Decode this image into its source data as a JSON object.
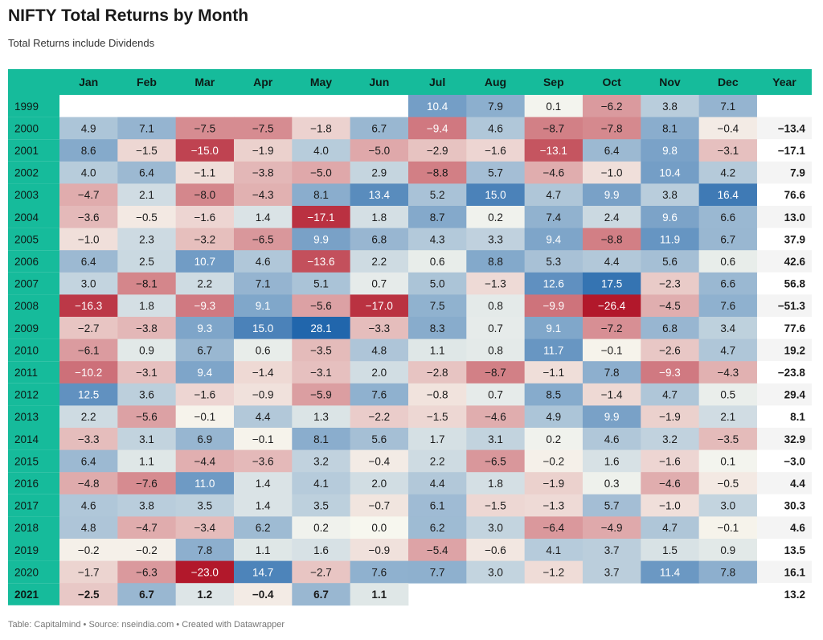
{
  "title": "NIFTY Total Returns by Month",
  "subtitle": "Total Returns include Dividends",
  "footer": "Table: Capitalmind • Source: nseindia.com • Created with Datawrapper",
  "colors": {
    "header": "#16bb9b",
    "neg_strong": "#b2182b",
    "neutral": "#f7f7ef",
    "pos_strong": "#2166ac",
    "stripe": "#f4f4f4"
  },
  "chart_data": {
    "type": "heatmap",
    "title": "NIFTY Total Returns by Month",
    "subtitle": "Total Returns include Dividends",
    "columns": [
      "Jan",
      "Feb",
      "Mar",
      "Apr",
      "May",
      "Jun",
      "Jul",
      "Aug",
      "Sep",
      "Oct",
      "Nov",
      "Dec"
    ],
    "year_column": "Year",
    "color_range": [
      -20,
      20
    ],
    "rows": [
      {
        "label": "1999",
        "values": [
          null,
          null,
          null,
          null,
          null,
          null,
          "10.4",
          "7.9",
          "0.1",
          "−6.2",
          "3.8",
          "7.1"
        ],
        "year": ""
      },
      {
        "label": "2000",
        "values": [
          "4.9",
          "7.1",
          "−7.5",
          "−7.5",
          "−1.8",
          "6.7",
          "−9.4",
          "4.6",
          "−8.7",
          "−7.8",
          "8.1",
          "−0.4"
        ],
        "year": "−13.4"
      },
      {
        "label": "2001",
        "values": [
          "8.6",
          "−1.5",
          "−15.0",
          "−1.9",
          "4.0",
          "−5.0",
          "−2.9",
          "−1.6",
          "−13.1",
          "6.4",
          "9.8",
          "−3.1"
        ],
        "year": "−17.1"
      },
      {
        "label": "2002",
        "values": [
          "4.0",
          "6.4",
          "−1.1",
          "−3.8",
          "−5.0",
          "2.9",
          "−8.8",
          "5.7",
          "−4.6",
          "−1.0",
          "10.4",
          "4.2"
        ],
        "year": "7.9"
      },
      {
        "label": "2003",
        "values": [
          "−4.7",
          "2.1",
          "−8.0",
          "−4.3",
          "8.1",
          "13.4",
          "5.2",
          "15.0",
          "4.7",
          "9.9",
          "3.8",
          "16.4"
        ],
        "year": "76.6"
      },
      {
        "label": "2004",
        "values": [
          "−3.6",
          "−0.5",
          "−1.6",
          "1.4",
          "−17.1",
          "1.8",
          "8.7",
          "0.2",
          "7.4",
          "2.4",
          "9.6",
          "6.6"
        ],
        "year": "13.0"
      },
      {
        "label": "2005",
        "values": [
          "−1.0",
          "2.3",
          "−3.2",
          "−6.5",
          "9.9",
          "6.8",
          "4.3",
          "3.3",
          "9.4",
          "−8.8",
          "11.9",
          "6.7"
        ],
        "year": "37.9"
      },
      {
        "label": "2006",
        "values": [
          "6.4",
          "2.5",
          "10.7",
          "4.6",
          "−13.6",
          "2.2",
          "0.6",
          "8.8",
          "5.3",
          "4.4",
          "5.6",
          "0.6"
        ],
        "year": "42.6"
      },
      {
        "label": "2007",
        "values": [
          "3.0",
          "−8.1",
          "2.2",
          "7.1",
          "5.1",
          "0.7",
          "5.0",
          "−1.3",
          "12.6",
          "17.5",
          "−2.3",
          "6.6"
        ],
        "year": "56.8"
      },
      {
        "label": "2008",
        "values": [
          "−16.3",
          "1.8",
          "−9.3",
          "9.1",
          "−5.6",
          "−17.0",
          "7.5",
          "0.8",
          "−9.9",
          "−26.4",
          "−4.5",
          "7.6"
        ],
        "year": "−51.3"
      },
      {
        "label": "2009",
        "values": [
          "−2.7",
          "−3.8",
          "9.3",
          "15.0",
          "28.1",
          "−3.3",
          "8.3",
          "0.7",
          "9.1",
          "−7.2",
          "6.8",
          "3.4"
        ],
        "year": "77.6"
      },
      {
        "label": "2010",
        "values": [
          "−6.1",
          "0.9",
          "6.7",
          "0.6",
          "−3.5",
          "4.8",
          "1.1",
          "0.8",
          "11.7",
          "−0.1",
          "−2.6",
          "4.7"
        ],
        "year": "19.2"
      },
      {
        "label": "2011",
        "values": [
          "−10.2",
          "−3.1",
          "9.4",
          "−1.4",
          "−3.1",
          "2.0",
          "−2.8",
          "−8.7",
          "−1.1",
          "7.8",
          "−9.3",
          "−4.3"
        ],
        "year": "−23.8"
      },
      {
        "label": "2012",
        "values": [
          "12.5",
          "3.6",
          "−1.6",
          "−0.9",
          "−5.9",
          "7.6",
          "−0.8",
          "0.7",
          "8.5",
          "−1.4",
          "4.7",
          "0.5"
        ],
        "year": "29.4"
      },
      {
        "label": "2013",
        "values": [
          "2.2",
          "−5.6",
          "−0.1",
          "4.4",
          "1.3",
          "−2.2",
          "−1.5",
          "−4.6",
          "4.9",
          "9.9",
          "−1.9",
          "2.1"
        ],
        "year": "8.1"
      },
      {
        "label": "2014",
        "values": [
          "−3.3",
          "3.1",
          "6.9",
          "−0.1",
          "8.1",
          "5.6",
          "1.7",
          "3.1",
          "0.2",
          "4.6",
          "3.2",
          "−3.5"
        ],
        "year": "32.9"
      },
      {
        "label": "2015",
        "values": [
          "6.4",
          "1.1",
          "−4.4",
          "−3.6",
          "3.2",
          "−0.4",
          "2.2",
          "−6.5",
          "−0.2",
          "1.6",
          "−1.6",
          "0.1"
        ],
        "year": "−3.0"
      },
      {
        "label": "2016",
        "values": [
          "−4.8",
          "−7.6",
          "11.0",
          "1.4",
          "4.1",
          "2.0",
          "4.4",
          "1.8",
          "−1.9",
          "0.3",
          "−4.6",
          "−0.5"
        ],
        "year": "4.4"
      },
      {
        "label": "2017",
        "values": [
          "4.6",
          "3.8",
          "3.5",
          "1.4",
          "3.5",
          "−0.7",
          "6.1",
          "−1.5",
          "−1.3",
          "5.7",
          "−1.0",
          "3.0"
        ],
        "year": "30.3"
      },
      {
        "label": "2018",
        "values": [
          "4.8",
          "−4.7",
          "−3.4",
          "6.2",
          "0.2",
          "0.0",
          "6.2",
          "3.0",
          "−6.4",
          "−4.9",
          "4.7",
          "−0.1"
        ],
        "year": "4.6"
      },
      {
        "label": "2019",
        "values": [
          "−0.2",
          "−0.2",
          "7.8",
          "1.1",
          "1.6",
          "−0.9",
          "−5.4",
          "−0.6",
          "4.1",
          "3.7",
          "1.5",
          "0.9"
        ],
        "year": "13.5"
      },
      {
        "label": "2020",
        "values": [
          "−1.7",
          "−6.3",
          "−23.0",
          "14.7",
          "−2.7",
          "7.6",
          "7.7",
          "3.0",
          "−1.2",
          "3.7",
          "11.4",
          "7.8"
        ],
        "year": "16.1"
      },
      {
        "label": "2021",
        "values": [
          "−2.5",
          "6.7",
          "1.2",
          "−0.4",
          "6.7",
          "1.1",
          null,
          null,
          null,
          null,
          null,
          null
        ],
        "year": "13.2",
        "bold": true
      }
    ]
  }
}
